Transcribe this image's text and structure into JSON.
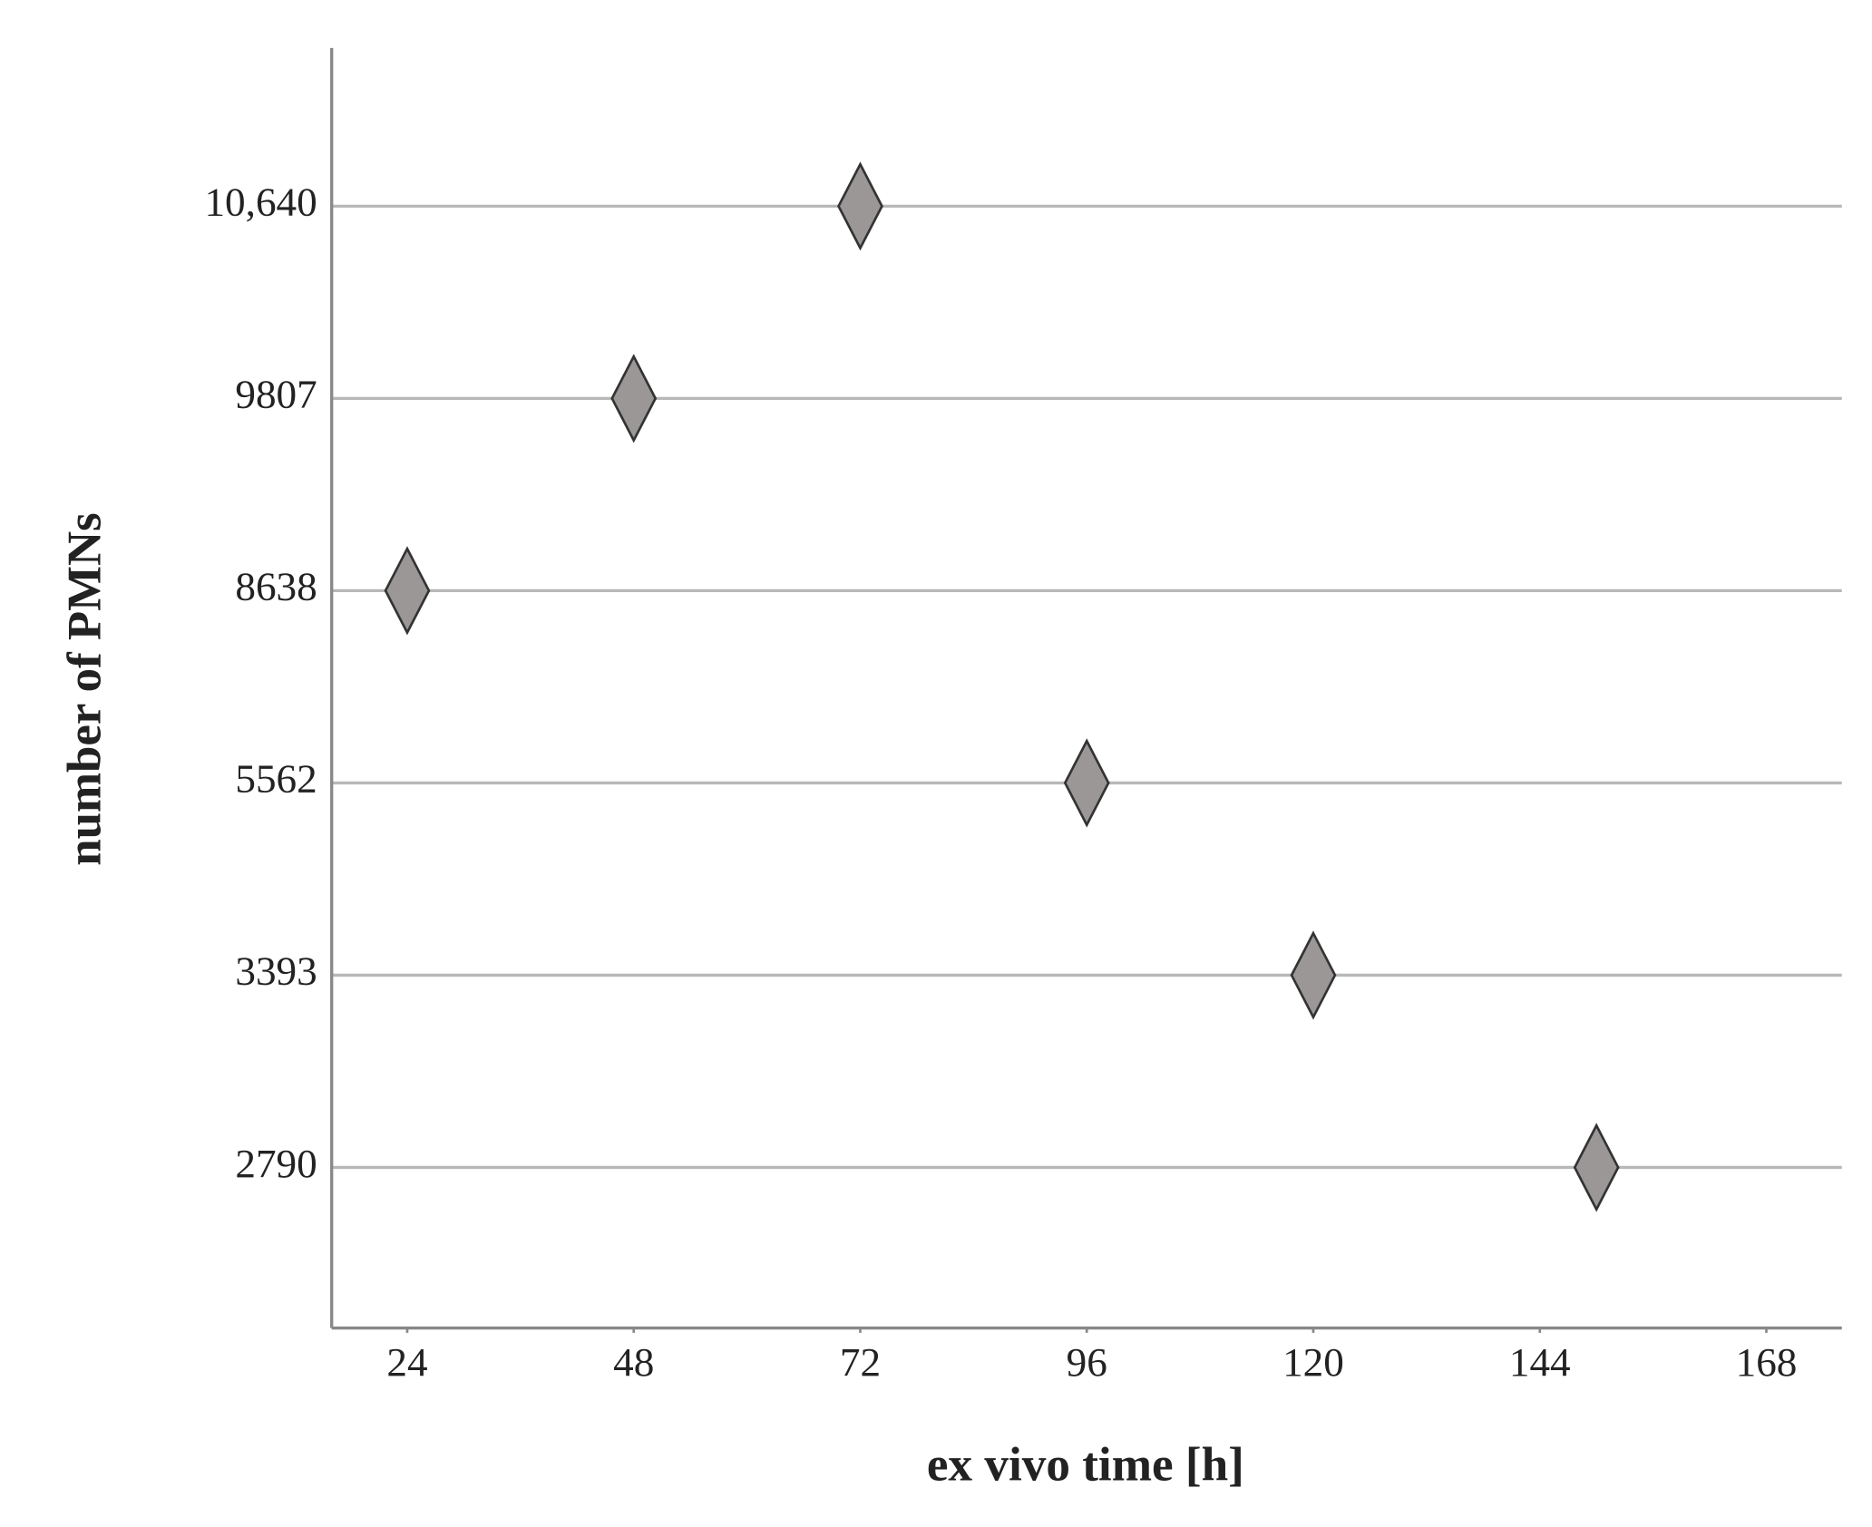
{
  "chart_data": {
    "type": "scatter",
    "x_label": "ex vivo time [h]",
    "y_label": "number of PMNs",
    "x": [
      24,
      48,
      72,
      96,
      120,
      150
    ],
    "values": [
      8638,
      9807,
      10640,
      5562,
      3393,
      2790
    ],
    "color": "#9b9797",
    "marker": "diamond",
    "xlim": [
      16,
      176
    ],
    "xticks": [
      24,
      48,
      72,
      96,
      120,
      144,
      168
    ],
    "yscale": "category",
    "yticks": [
      2790,
      3393,
      5562,
      8638,
      9807,
      {
        "value": 10640,
        "label": "10,640"
      }
    ],
    "grid": true
  }
}
